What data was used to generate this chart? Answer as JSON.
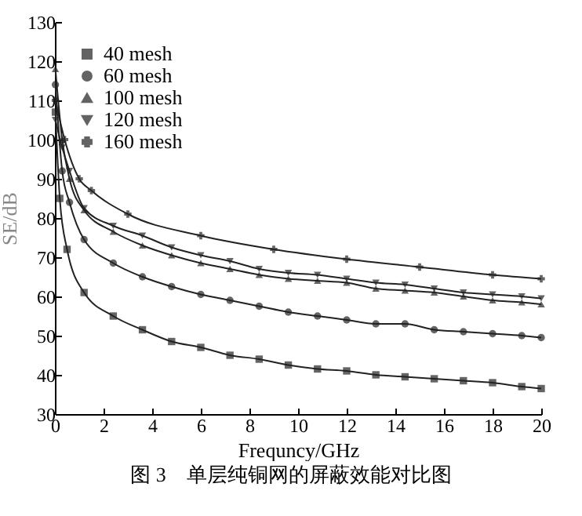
{
  "chart_data": {
    "type": "line",
    "xlabel": "Frequncy/GHz",
    "ylabel": "SE/dB",
    "xlim": [
      0,
      20
    ],
    "xticks": [
      0,
      2,
      4,
      6,
      8,
      10,
      12,
      14,
      16,
      18,
      20
    ],
    "ylim": [
      30,
      130
    ],
    "yticks": [
      30,
      40,
      50,
      60,
      70,
      80,
      90,
      100,
      110,
      120,
      130
    ],
    "grid": false,
    "legend": "top left",
    "annotations": [
      "图 3　单层纯铜网的屏蔽效能对比图"
    ],
    "series": [
      {
        "name": "40 mesh",
        "color": "#222222",
        "marker": "square",
        "x": [
          0.02,
          0.2,
          0.5,
          1.2,
          2.4,
          3.6,
          4.8,
          6,
          7.2,
          8.4,
          9.6,
          10.8,
          12,
          13.2,
          14.4,
          15.6,
          16.8,
          18,
          19.2,
          20
        ],
        "values": [
          107,
          85,
          72,
          61,
          55,
          51.5,
          48.5,
          47,
          45,
          44,
          42.5,
          41.5,
          41,
          40,
          39.5,
          39,
          38.5,
          38,
          37,
          36.5
        ]
      },
      {
        "name": "60 mesh",
        "color": "#222222",
        "marker": "circle",
        "x": [
          0.02,
          0.3,
          0.6,
          1.2,
          2.4,
          3.6,
          4.8,
          6,
          7.2,
          8.4,
          9.6,
          10.8,
          12,
          13.2,
          14.4,
          15.6,
          16.8,
          18,
          19.2,
          20
        ],
        "values": [
          114,
          92,
          84,
          74.5,
          68.5,
          65,
          62.5,
          60.5,
          59,
          57.5,
          56,
          55,
          54,
          53,
          53,
          51.5,
          51,
          50.5,
          50,
          49.5
        ]
      },
      {
        "name": "100 mesh",
        "color": "#222222",
        "marker": "triangle",
        "x": [
          0.02,
          0.3,
          0.6,
          1.2,
          2.4,
          3.6,
          4.8,
          6,
          7.2,
          8.4,
          9.6,
          10.8,
          12,
          13.2,
          14.4,
          15.6,
          16.8,
          18,
          19.2,
          20
        ],
        "values": [
          118,
          100,
          90,
          82,
          76.5,
          73,
          70.5,
          68.5,
          67,
          65.5,
          64.5,
          64,
          63.5,
          62,
          61.5,
          61,
          60,
          59,
          58.5,
          58
        ]
      },
      {
        "name": "120 mesh",
        "color": "#222222",
        "marker": "triangle-down",
        "x": [
          0.02,
          0.3,
          0.6,
          1.2,
          2.4,
          3.6,
          4.8,
          6,
          7.2,
          8.4,
          9.6,
          10.8,
          12,
          13.2,
          14.4,
          15.6,
          16.8,
          18,
          19.2,
          20
        ],
        "values": [
          105,
          98,
          92,
          82.5,
          78,
          75.5,
          72.5,
          70.5,
          69,
          67,
          66,
          65.5,
          64.5,
          63.5,
          63,
          62,
          61,
          60.5,
          60,
          59.5
        ]
      },
      {
        "name": "160 mesh",
        "color": "#222222",
        "marker": "cross",
        "x": [
          0.02,
          0.4,
          1,
          1.5,
          3,
          6,
          9,
          12,
          15,
          18,
          20
        ],
        "values": [
          110,
          100,
          90,
          87,
          81,
          75.5,
          72,
          69.5,
          67.5,
          65.5,
          64.5
        ]
      }
    ]
  }
}
